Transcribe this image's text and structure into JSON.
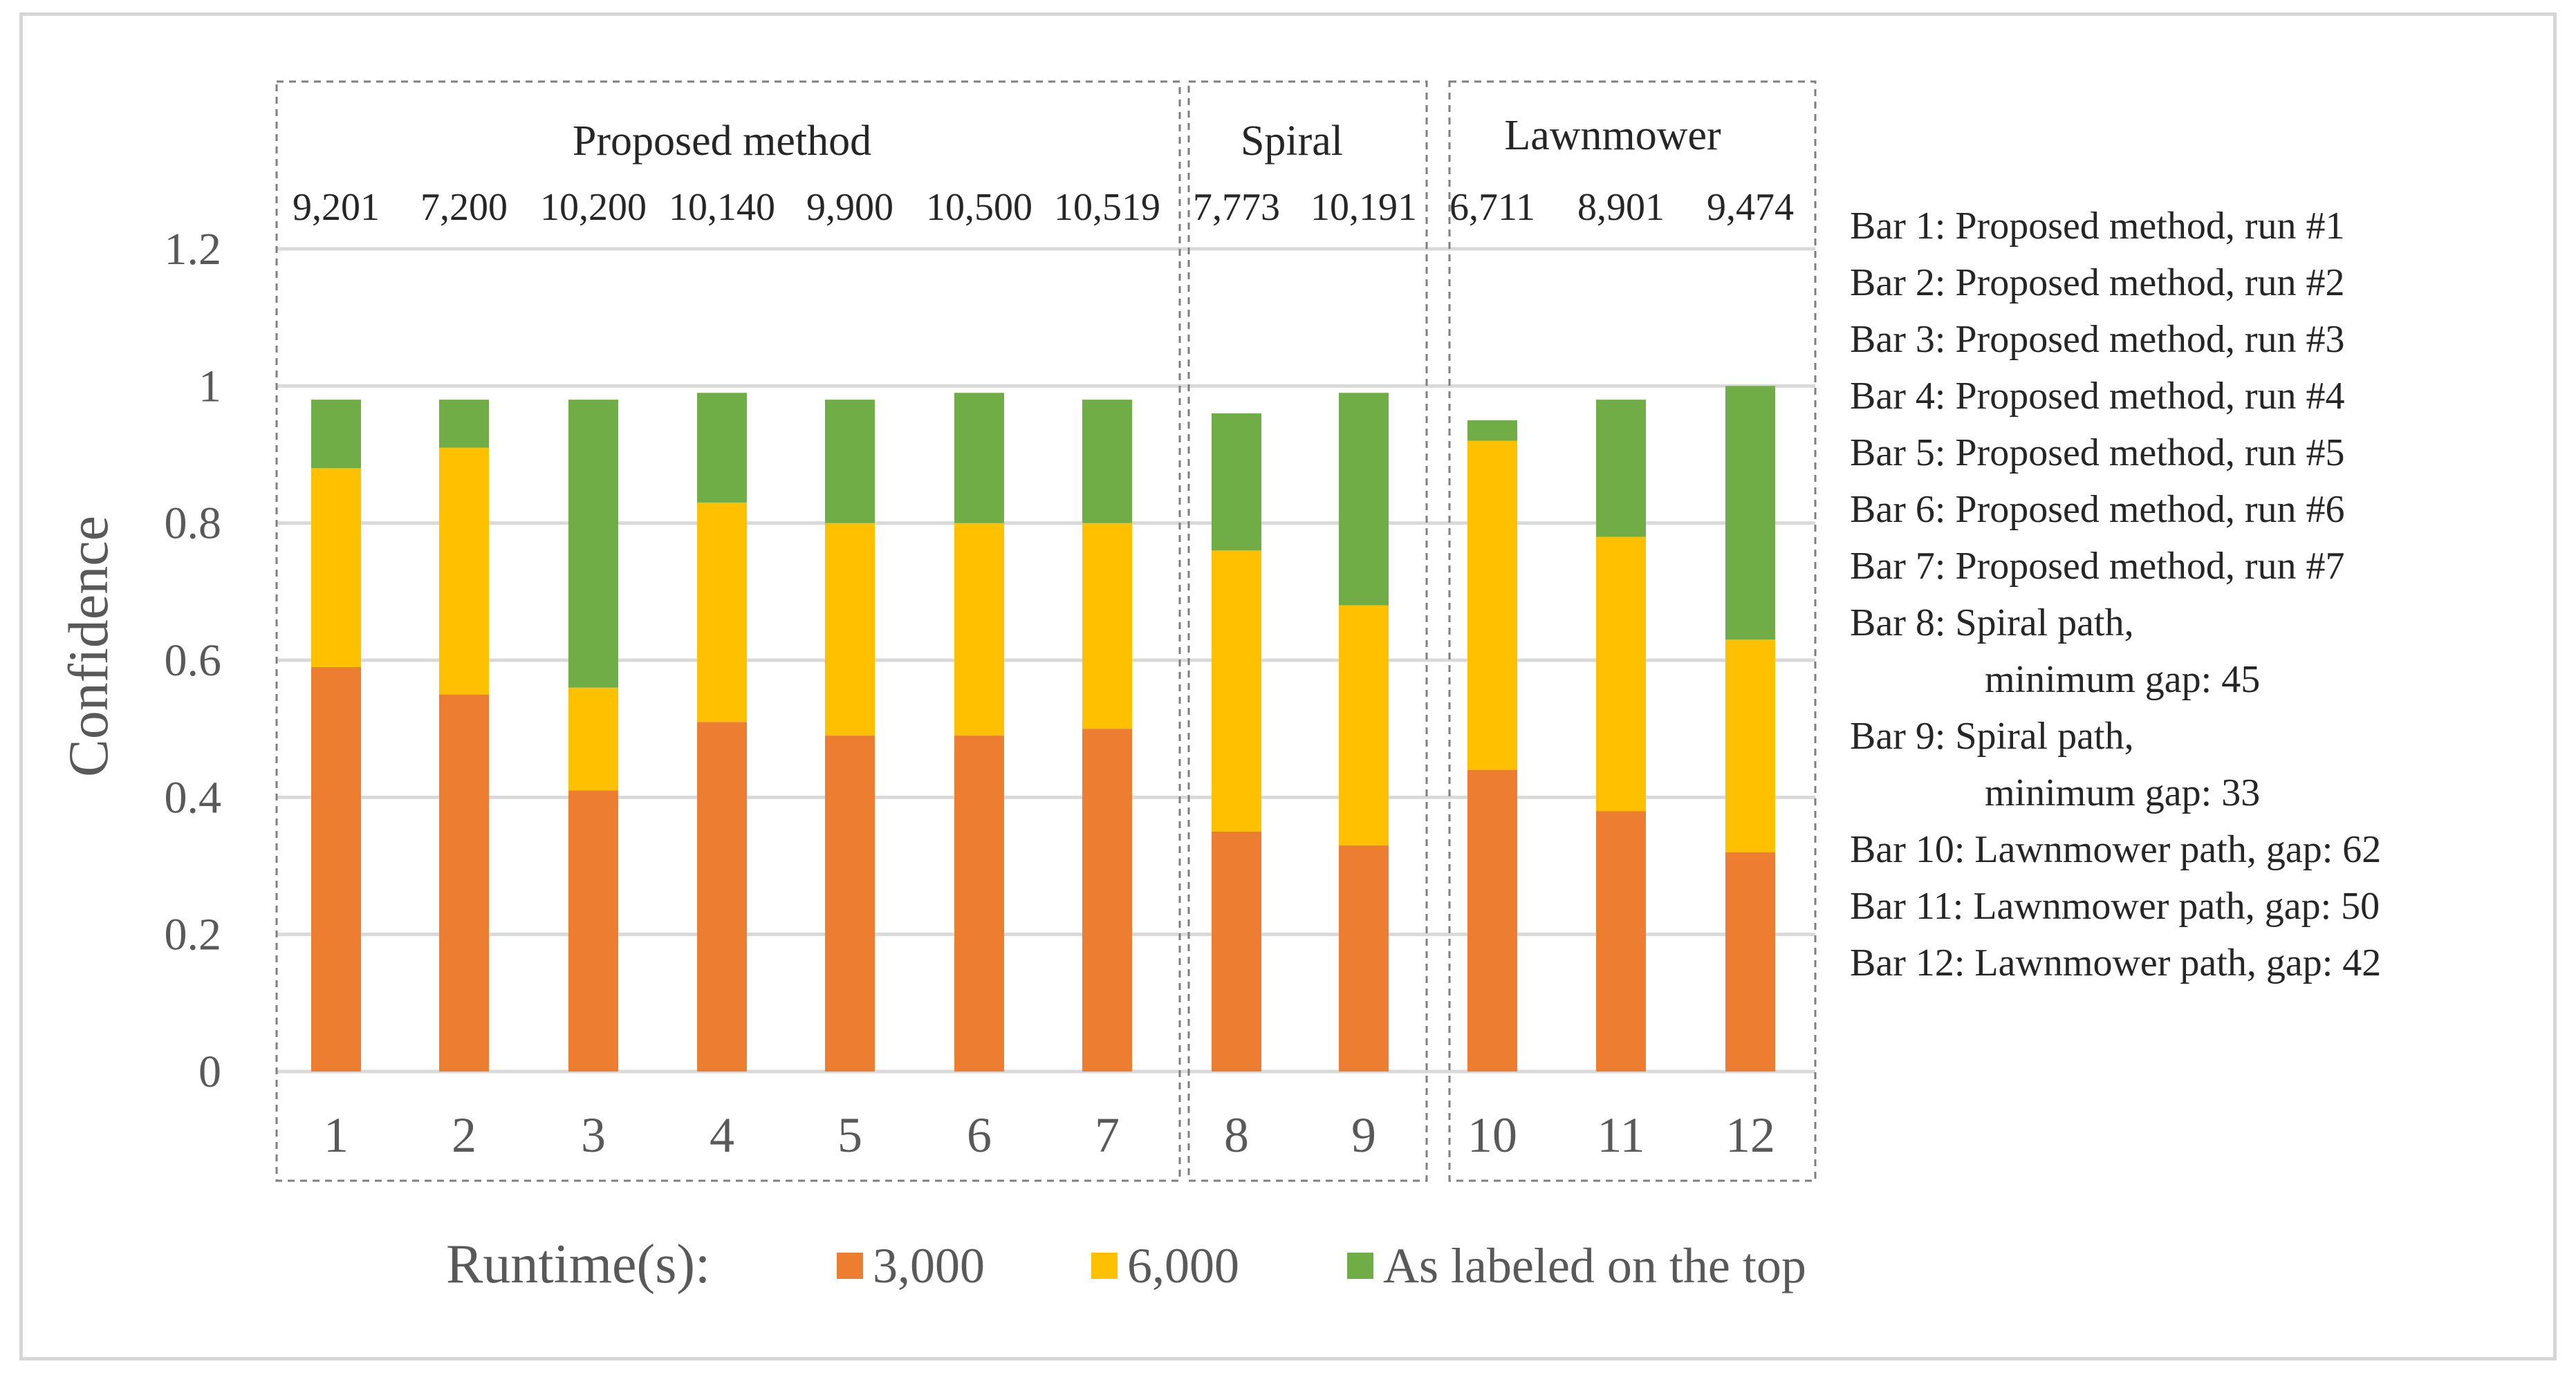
{
  "chart_data": {
    "type": "bar",
    "stacked": true,
    "categories": [
      "1",
      "2",
      "3",
      "4",
      "5",
      "6",
      "7",
      "8",
      "9",
      "10",
      "11",
      "12"
    ],
    "ylabel": "Confidence",
    "ylim": [
      0,
      1.2
    ],
    "yticks": [
      "0",
      "0.2",
      "0.4",
      "0.6",
      "0.8",
      "1",
      "1.2"
    ],
    "ytick_values": [
      0,
      0.2,
      0.4,
      0.6,
      0.8,
      1.0,
      1.2
    ],
    "grid": true,
    "series": [
      {
        "name": "3,000",
        "color": "#ED7D31",
        "values": [
          0.59,
          0.55,
          0.41,
          0.51,
          0.49,
          0.49,
          0.5,
          0.35,
          0.33,
          0.44,
          0.38,
          0.32
        ]
      },
      {
        "name": "6,000",
        "color": "#FFC000",
        "values": [
          0.29,
          0.36,
          0.15,
          0.32,
          0.31,
          0.31,
          0.3,
          0.41,
          0.35,
          0.48,
          0.4,
          0.31
        ]
      },
      {
        "name": "As labeled on the top",
        "color": "#70AD47",
        "values": [
          0.1,
          0.07,
          0.42,
          0.16,
          0.18,
          0.19,
          0.18,
          0.2,
          0.31,
          0.03,
          0.2,
          0.37
        ]
      }
    ],
    "top_labels": [
      "9,201",
      "7,200",
      "10,200",
      "10,140",
      "9,900",
      "10,500",
      "10,519",
      "7,773",
      "10,191",
      "6,711",
      "8,901",
      "9,474"
    ],
    "groups": [
      {
        "label": "Proposed method",
        "start": 0,
        "end": 6
      },
      {
        "label": "Spiral",
        "start": 7,
        "end": 8
      },
      {
        "label": "Lawnmower",
        "start": 9,
        "end": 11
      }
    ],
    "legend": {
      "title": "Runtime(s):",
      "position": "bottom"
    }
  },
  "notes": [
    {
      "line1": "Bar 1: Proposed method, run #1"
    },
    {
      "line1": "Bar 2: Proposed method, run #2"
    },
    {
      "line1": "Bar 3: Proposed method, run #3"
    },
    {
      "line1": "Bar 4: Proposed method, run #4"
    },
    {
      "line1": "Bar 5: Proposed method, run #5"
    },
    {
      "line1": "Bar 6: Proposed method, run #6"
    },
    {
      "line1": "Bar 7: Proposed method, run #7"
    },
    {
      "line1": "Bar 8: Spiral path,",
      "line2": "minimum gap: 45"
    },
    {
      "line1": "Bar 9: Spiral path,",
      "line2": "minimum gap: 33"
    },
    {
      "line1": "Bar 10: Lawnmower path, gap: 62"
    },
    {
      "line1": "Bar 11: Lawnmower path, gap: 50"
    },
    {
      "line1": "Bar 12: Lawnmower path, gap: 42"
    }
  ]
}
